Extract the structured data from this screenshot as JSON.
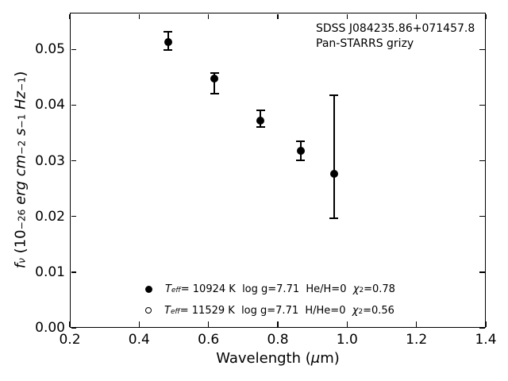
{
  "figure": {
    "background_color": "#ffffff",
    "foreground_color": "#000000",
    "annotation": {
      "line1": "SDSS J084235.86+071457.8",
      "line2": "Pan-STARRS grizy"
    },
    "xlabel": {
      "pre": "Wavelength (",
      "mu": "μ",
      "post": "m)"
    },
    "ylabel": {
      "f": "f",
      "nu": "ν",
      "s1": " (10",
      "sup1": "−26",
      "s2": " erg cm",
      "sup2": "−2",
      "s3": " s",
      "sup3": "−1",
      "s4": " Hz",
      "sup4": "−1",
      "s5": ")"
    },
    "legend": {
      "rows": [
        {
          "marker": "filled-circle",
          "T": "T",
          "Tsub": "eff",
          "mid": "= 10924 K  log g=7.71  He/H=0  ",
          "chi": "χ",
          "chisup": "2",
          "tail": "=0.78"
        },
        {
          "marker": "open-circle",
          "T": "T",
          "Tsub": "eff",
          "mid": "= 11529 K  log g=7.71  H/He=0  ",
          "chi": "χ",
          "chisup": "2",
          "tail": "=0.56"
        }
      ]
    }
  },
  "chart_data": {
    "type": "scatter",
    "title": "",
    "xlabel": "Wavelength (μm)",
    "ylabel": "f_ν (10⁻²⁶ erg cm⁻² s⁻¹ Hz⁻¹)",
    "xlim": [
      0.2,
      1.4
    ],
    "ylim": [
      0,
      0.0566
    ],
    "xticks": [
      0.2,
      0.4,
      0.6,
      0.8,
      1.0,
      1.2,
      1.4
    ],
    "xtick_labels": [
      "0.2",
      "0.4",
      "0.6",
      "0.8",
      "1.0",
      "1.2",
      "1.4"
    ],
    "yticks": [
      0,
      0.01,
      0.02,
      0.03,
      0.04,
      0.05
    ],
    "ytick_labels": [
      "0.00",
      "0.01",
      "0.02",
      "0.03",
      "0.04",
      "0.05"
    ],
    "grid": false,
    "tick_style": "inward, all four spines, majors only",
    "annotations": [
      "SDSS J084235.86+071457.8",
      "Pan-STARRS grizy"
    ],
    "series": [
      {
        "name": "filled-circle series (Pan-STARRS grizy fluxes with error bars)",
        "marker": "filled-circle",
        "color": "#000000",
        "points": [
          {
            "x": 0.483,
            "y": 0.0513,
            "bar_top": 0.0532,
            "bar_bottom": 0.0499
          },
          {
            "x": 0.617,
            "y": 0.0448,
            "bar_top": 0.0457,
            "bar_bottom": 0.0421
          },
          {
            "x": 0.75,
            "y": 0.0372,
            "bar_top": 0.039,
            "bar_bottom": 0.0361
          },
          {
            "x": 0.866,
            "y": 0.0318,
            "bar_top": 0.0335,
            "bar_bottom": 0.0301
          },
          {
            "x": 0.962,
            "y": 0.0276,
            "bar_top": 0.0418,
            "bar_bottom": 0.0197
          }
        ]
      }
    ],
    "legend_entries": [
      {
        "marker": "filled-circle",
        "label": "Teff= 10924 K  log g=7.71  He/H=0  χ2=0.78"
      },
      {
        "marker": "open-circle",
        "label": "Teff= 11529 K  log g=7.71  H/He=0  χ2=0.56"
      }
    ]
  }
}
